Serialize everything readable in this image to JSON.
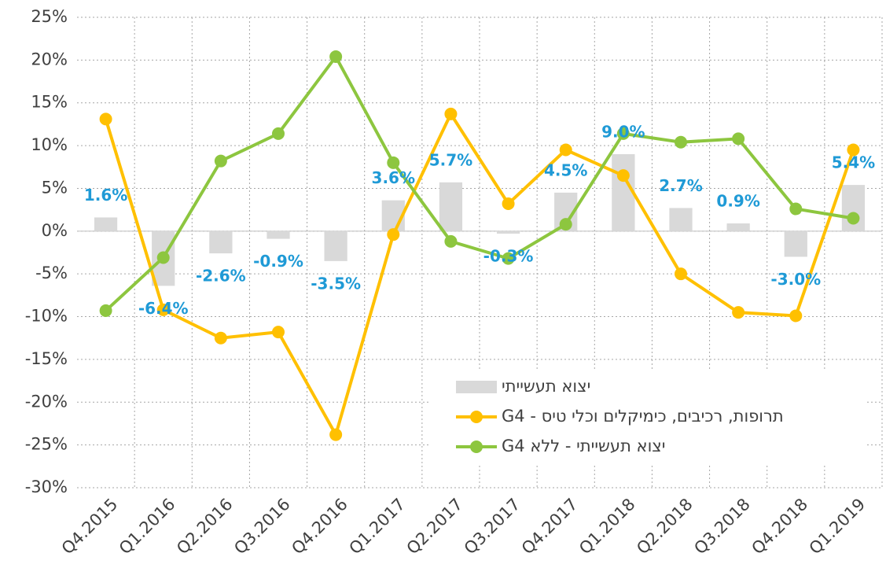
{
  "chart_data": {
    "type": "bar_line",
    "categories": [
      "Q4.2015",
      "Q1.2016",
      "Q2.2016",
      "Q3.2016",
      "Q4.2016",
      "Q1.2017",
      "Q2.2017",
      "Q3.2017",
      "Q4.2017",
      "Q1.2018",
      "Q2.2018",
      "Q3.2018",
      "Q4.2018",
      "Q1.2019"
    ],
    "series": [
      {
        "name": "יצוא תעשייתי",
        "type": "bar",
        "color": "#d9d9d9",
        "values": [
          1.6,
          -6.4,
          -2.6,
          -0.9,
          -3.5,
          3.6,
          5.7,
          -0.3,
          4.5,
          9.0,
          2.7,
          0.9,
          -3.0,
          5.4
        ],
        "value_labels": [
          "1.6%",
          "-6.4%",
          "-2.6%",
          "-0.9%",
          "-3.5%",
          "3.6%",
          "5.7%",
          "-0.3%",
          "4.5%",
          "9.0%",
          "2.7%",
          "0.9%",
          "-3.0%",
          "5.4%"
        ],
        "label_color": "#1f9ad6"
      },
      {
        "name": "תרופות, רכיבים, כימיקלים וכלי טיס - G4",
        "type": "line",
        "color": "#ffc000",
        "values": [
          13.1,
          -9.2,
          -12.5,
          -11.8,
          -23.8,
          -0.4,
          13.7,
          3.2,
          9.5,
          6.5,
          -5.0,
          -9.5,
          -9.9,
          9.5
        ]
      },
      {
        "name": "יצוא תעשייתי - ללא G4",
        "type": "line",
        "color": "#8dc63f",
        "values": [
          -9.3,
          -3.1,
          8.2,
          11.4,
          20.4,
          8.0,
          -1.2,
          -3.2,
          0.8,
          11.4,
          10.4,
          10.8,
          2.6,
          1.5
        ]
      }
    ],
    "ylim": [
      -30,
      25
    ],
    "yticks": [
      {
        "value": -30,
        "label": "-30%"
      },
      {
        "value": -25,
        "label": "-25%"
      },
      {
        "value": -20,
        "label": "-20%"
      },
      {
        "value": -15,
        "label": "-15%"
      },
      {
        "value": -10,
        "label": "-10%"
      },
      {
        "value": -5,
        "label": "-5%"
      },
      {
        "value": 0,
        "label": "0%"
      },
      {
        "value": 5,
        "label": "5%"
      },
      {
        "value": 10,
        "label": "10%"
      },
      {
        "value": 15,
        "label": "15%"
      },
      {
        "value": 20,
        "label": "20%"
      },
      {
        "value": 25,
        "label": "25%"
      }
    ],
    "grid": true,
    "legend": "lower-right"
  }
}
